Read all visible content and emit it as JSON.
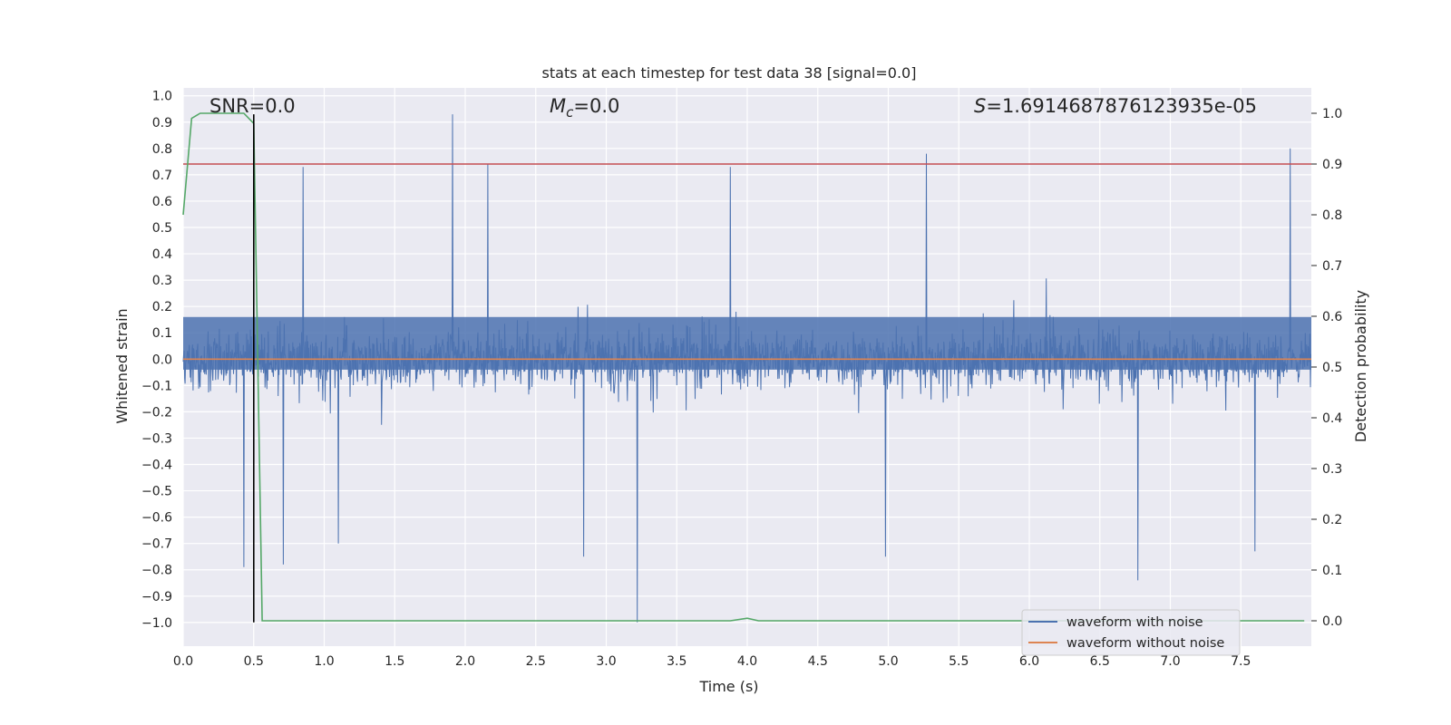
{
  "chart_data": {
    "type": "line",
    "title": "stats at each timestep for test data 38 [signal=0.0]",
    "xlabel": "Time (s)",
    "ylabel": "Whitened strain",
    "y2label": "Detection probability",
    "xlim": [
      0.0,
      8.0
    ],
    "ylim": [
      -1.09,
      1.03
    ],
    "y2lim": [
      -0.05,
      1.05
    ],
    "xticks": [
      "0.0",
      "0.5",
      "1.0",
      "1.5",
      "2.0",
      "2.5",
      "3.0",
      "3.5",
      "4.0",
      "4.5",
      "5.0",
      "5.5",
      "6.0",
      "6.5",
      "7.0",
      "7.5"
    ],
    "xtick_values": [
      0,
      0.5,
      1,
      1.5,
      2,
      2.5,
      3,
      3.5,
      4,
      4.5,
      5,
      5.5,
      6,
      6.5,
      7,
      7.5
    ],
    "yticks": [
      "1.0",
      "0.9",
      "0.8",
      "0.7",
      "0.6",
      "0.5",
      "0.4",
      "0.3",
      "0.2",
      "0.1",
      "0.0",
      "−0.1",
      "−0.2",
      "−0.3",
      "−0.4",
      "−0.5",
      "−0.6",
      "−0.7",
      "−0.8",
      "−0.9",
      "−1.0"
    ],
    "ytick_values": [
      1,
      0.9,
      0.8,
      0.7,
      0.6,
      0.5,
      0.4,
      0.3,
      0.2,
      0.1,
      0,
      -0.1,
      -0.2,
      -0.3,
      -0.4,
      -0.5,
      -0.6,
      -0.7,
      -0.8,
      -0.9,
      -1
    ],
    "y2ticks": [
      "1.0",
      "0.9",
      "0.8",
      "0.7",
      "0.6",
      "0.5",
      "0.4",
      "0.3",
      "0.2",
      "0.1",
      "0.0"
    ],
    "y2tick_values": [
      1,
      0.9,
      0.8,
      0.7,
      0.6,
      0.5,
      0.4,
      0.3,
      0.2,
      0.1,
      0
    ],
    "annotations": {
      "snr": "SNR=0.0",
      "mc_symbol": "M",
      "mc_sub": "c",
      "mc_value": "=0.0",
      "s_symbol": "S",
      "s_value": "=1.6914687876123935e-05"
    },
    "legend": {
      "position": "lower-right",
      "entries": [
        {
          "label": "waveform with noise",
          "color": "#4c72b0"
        },
        {
          "label": "waveform without noise",
          "color": "#dd8452"
        }
      ]
    },
    "series": [
      {
        "name": "waveform with noise",
        "axis": "left",
        "color": "#4c72b0",
        "description": "dense whitened noise, mostly within ±0.35 with spikes",
        "noise_seed": 38,
        "noise_samples": 2400,
        "spikes": [
          {
            "t": 1.91,
            "v": 0.93
          },
          {
            "t": 3.22,
            "v": -1.0
          },
          {
            "t": 6.77,
            "v": -0.84
          },
          {
            "t": 7.85,
            "v": 0.8
          },
          {
            "t": 5.27,
            "v": 0.78
          },
          {
            "t": 0.85,
            "v": 0.73
          },
          {
            "t": 2.16,
            "v": 0.74
          },
          {
            "t": 3.88,
            "v": 0.73
          },
          {
            "t": 0.43,
            "v": -0.79
          },
          {
            "t": 0.71,
            "v": -0.78
          },
          {
            "t": 2.84,
            "v": -0.75
          },
          {
            "t": 4.98,
            "v": -0.75
          },
          {
            "t": 1.1,
            "v": -0.7
          },
          {
            "t": 7.6,
            "v": -0.73
          }
        ]
      },
      {
        "name": "waveform without noise",
        "axis": "left",
        "color": "#dd8452",
        "x": [
          0.0,
          8.0
        ],
        "y": [
          0.0,
          0.0
        ]
      },
      {
        "name": "detection probability",
        "axis": "right",
        "color": "#55a868",
        "x": [
          0.0,
          0.06,
          0.12,
          0.43,
          0.5,
          0.56,
          3.88,
          4.0,
          4.08,
          7.95
        ],
        "y": [
          0.8,
          0.99,
          1.0,
          1.0,
          0.98,
          0.0,
          0.0,
          0.005,
          0.0,
          0.0
        ]
      },
      {
        "name": "threshold",
        "axis": "right",
        "color": "#c44e52",
        "x": [
          0.0,
          8.0
        ],
        "y": [
          0.9,
          0.9
        ]
      },
      {
        "name": "marker",
        "axis": "left",
        "color": "#000000",
        "x": [
          0.5,
          0.5
        ],
        "y": [
          -1.0,
          0.93
        ]
      }
    ]
  }
}
